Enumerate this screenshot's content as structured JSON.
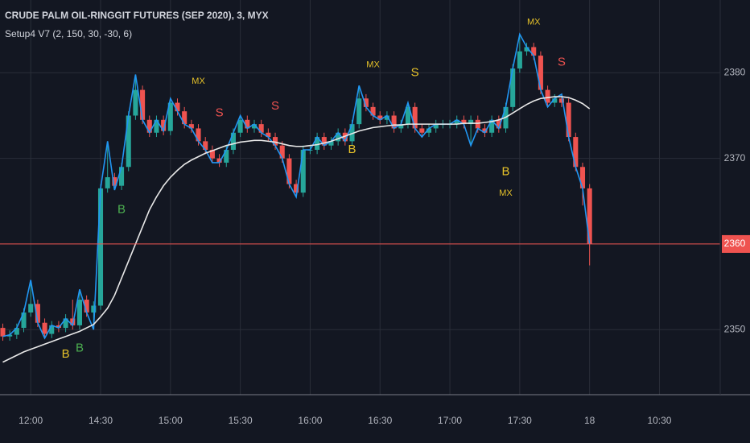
{
  "chart_data": {
    "type": "candlestick",
    "title": "CRUDE PALM OIL-RINGGIT FUTURES (SEP 2020), 3, MYX",
    "subtitle": "Setup4 V7 (2, 150, 30, -30, 6)",
    "up_color": "#26a69a",
    "down_color": "#ef5350",
    "grid": true,
    "ylim": [
      2342.4,
      2388.5
    ],
    "yticks": [
      2350,
      2360,
      2370,
      2380
    ],
    "xlim": [
      -0.4,
      102.7
    ],
    "xticks": [
      {
        "value": 4,
        "label": "12:00"
      },
      {
        "value": 14,
        "label": "14:30"
      },
      {
        "value": 24,
        "label": "15:00"
      },
      {
        "value": 34,
        "label": "15:30"
      },
      {
        "value": 44,
        "label": "16:00"
      },
      {
        "value": 54,
        "label": "16:30"
      },
      {
        "value": 64,
        "label": "17:00"
      },
      {
        "value": 74,
        "label": "17:30"
      },
      {
        "value": 84,
        "label": "18"
      },
      {
        "value": 94,
        "label": "10:30"
      }
    ],
    "open": [
      2350.2,
      2349.2,
      2349.4,
      2350.2,
      2352.0,
      2353.0,
      2350.8,
      2349.5,
      2350.5,
      2350.2,
      2351.3,
      2350.5,
      2353.5,
      2352.0,
      2352.8,
      2366.5,
      2367.8,
      2366.8,
      2369.0,
      2375.0,
      2378.0,
      2374.5,
      2373.0,
      2374.5,
      2373.2,
      2376.5,
      2375.5,
      2374.0,
      2373.5,
      2372.0,
      2371.0,
      2370.0,
      2369.5,
      2371.0,
      2373.0,
      2374.5,
      2373.5,
      2374.0,
      2373.0,
      2372.5,
      2371.5,
      2370.0,
      2367.0,
      2366.0,
      2371.0,
      2371.0,
      2372.5,
      2371.5,
      2372.0,
      2373.0,
      2372.0,
      2374.0,
      2377.0,
      2376.0,
      2375.0,
      2374.5,
      2375.0,
      2373.5,
      2374.0,
      2376.0,
      2373.5,
      2373.0,
      2373.5,
      2374.0,
      2374.0,
      2374.0,
      2374.5,
      2374.0,
      2374.5,
      2373.5,
      2373.0,
      2374.5,
      2373.5,
      2376.0,
      2380.5,
      2382.5,
      2383.0,
      2382.0,
      2378.0,
      2376.5,
      2377.0,
      2376.5,
      2372.5,
      2369.0,
      2366.5
    ],
    "high": [
      2350.7,
      2349.9,
      2350.7,
      2352.5,
      2355.8,
      2353.5,
      2351.3,
      2351.0,
      2351.0,
      2351.8,
      2353.5,
      2354.7,
      2354.0,
      2353.3,
      2367.0,
      2372.0,
      2368.3,
      2369.5,
      2375.5,
      2379.8,
      2378.5,
      2375.0,
      2375.0,
      2375.0,
      2377.0,
      2377.0,
      2376.0,
      2374.5,
      2374.0,
      2372.5,
      2371.5,
      2370.5,
      2371.5,
      2373.5,
      2375.0,
      2375.0,
      2374.5,
      2374.5,
      2373.5,
      2373.0,
      2372.0,
      2370.5,
      2367.5,
      2371.5,
      2371.5,
      2373.0,
      2373.0,
      2372.5,
      2373.5,
      2373.5,
      2374.5,
      2378.5,
      2377.5,
      2376.5,
      2375.5,
      2375.5,
      2375.5,
      2374.5,
      2376.5,
      2376.5,
      2374.0,
      2374.0,
      2374.5,
      2374.5,
      2374.5,
      2375.0,
      2375.0,
      2375.0,
      2375.0,
      2374.0,
      2375.0,
      2375.0,
      2376.5,
      2381.0,
      2384.5,
      2383.5,
      2383.5,
      2382.5,
      2378.5,
      2377.5,
      2377.5,
      2377.0,
      2373.0,
      2369.5,
      2367.0
    ],
    "low": [
      2348.7,
      2348.7,
      2348.9,
      2349.7,
      2351.5,
      2350.3,
      2349.0,
      2349.0,
      2349.7,
      2349.7,
      2350.0,
      2350.0,
      2351.5,
      2350.0,
      2352.3,
      2366.0,
      2366.3,
      2366.3,
      2368.5,
      2374.5,
      2374.0,
      2372.5,
      2372.5,
      2372.7,
      2372.7,
      2375.0,
      2373.5,
      2373.0,
      2371.5,
      2370.5,
      2369.5,
      2369.0,
      2369.0,
      2370.5,
      2372.5,
      2373.0,
      2373.0,
      2372.5,
      2372.0,
      2371.0,
      2369.5,
      2366.5,
      2365.5,
      2365.5,
      2370.5,
      2370.5,
      2371.0,
      2371.0,
      2371.5,
      2371.5,
      2371.5,
      2373.5,
      2375.5,
      2374.5,
      2374.0,
      2374.0,
      2373.0,
      2373.0,
      2373.5,
      2373.0,
      2372.5,
      2372.5,
      2373.0,
      2373.5,
      2373.5,
      2373.5,
      2373.5,
      2371.5,
      2373.0,
      2372.5,
      2372.5,
      2373.0,
      2373.0,
      2375.5,
      2380.0,
      2382.0,
      2381.5,
      2377.5,
      2376.0,
      2376.0,
      2376.0,
      2372.0,
      2368.5,
      2364.5,
      2357.5
    ],
    "close": [
      2349.2,
      2349.4,
      2350.2,
      2352.0,
      2353.0,
      2350.8,
      2349.5,
      2350.5,
      2350.2,
      2351.3,
      2350.5,
      2353.5,
      2352.0,
      2352.8,
      2366.5,
      2367.8,
      2366.8,
      2369.0,
      2375.0,
      2378.0,
      2374.5,
      2373.0,
      2374.5,
      2373.2,
      2376.5,
      2375.5,
      2374.0,
      2373.5,
      2372.0,
      2371.0,
      2370.0,
      2369.5,
      2371.0,
      2373.0,
      2374.5,
      2373.5,
      2374.0,
      2373.0,
      2372.5,
      2371.5,
      2370.0,
      2367.0,
      2366.0,
      2371.0,
      2371.0,
      2372.5,
      2371.5,
      2372.0,
      2373.0,
      2372.0,
      2374.0,
      2377.0,
      2376.0,
      2375.0,
      2374.5,
      2375.0,
      2373.5,
      2374.0,
      2376.0,
      2373.5,
      2373.0,
      2373.5,
      2374.0,
      2374.0,
      2374.0,
      2374.5,
      2374.0,
      2374.5,
      2373.5,
      2373.0,
      2374.5,
      2373.5,
      2376.0,
      2380.5,
      2382.5,
      2383.0,
      2382.0,
      2378.0,
      2376.5,
      2377.0,
      2376.5,
      2372.5,
      2369.0,
      2366.5,
      2360.0
    ],
    "lines": [
      {
        "color": "#2196f3",
        "values": [
          2349.2,
          2349.4,
          2350.2,
          2352.0,
          2355.8,
          2350.8,
          2349.0,
          2350.5,
          2350.2,
          2351.3,
          2350.5,
          2354.7,
          2352.0,
          2350.0,
          2366.5,
          2372.0,
          2366.3,
          2369.0,
          2375.0,
          2379.8,
          2374.5,
          2373.0,
          2374.5,
          2373.2,
          2377.0,
          2375.5,
          2374.0,
          2373.5,
          2372.0,
          2371.0,
          2369.5,
          2369.5,
          2371.0,
          2373.0,
          2375.0,
          2373.5,
          2374.0,
          2373.0,
          2372.5,
          2371.5,
          2370.0,
          2367.0,
          2365.5,
          2371.0,
          2371.0,
          2372.5,
          2371.5,
          2372.0,
          2373.0,
          2372.0,
          2374.0,
          2378.5,
          2376.0,
          2375.0,
          2374.5,
          2375.0,
          2373.5,
          2374.0,
          2376.5,
          2373.5,
          2372.5,
          2373.5,
          2374.0,
          2374.0,
          2374.0,
          2374.5,
          2374.0,
          2371.5,
          2373.5,
          2373.0,
          2374.5,
          2373.5,
          2376.0,
          2380.5,
          2384.5,
          2383.0,
          2382.0,
          2378.0,
          2376.0,
          2377.0,
          2377.5,
          2372.5,
          2369.0,
          2366.5,
          2360.0
        ]
      },
      {
        "color": "#e8e8e8",
        "values": [
          2346.2,
          2346.6,
          2347.0,
          2347.4,
          2347.7,
          2348.0,
          2348.3,
          2348.6,
          2348.9,
          2349.2,
          2349.5,
          2349.8,
          2350.2,
          2350.6,
          2351.5,
          2352.5,
          2354.0,
          2356.0,
          2358.0,
          2360.0,
          2362.0,
          2364.0,
          2365.5,
          2366.8,
          2367.8,
          2368.6,
          2369.3,
          2369.8,
          2370.2,
          2370.6,
          2370.9,
          2371.2,
          2371.5,
          2371.7,
          2371.9,
          2372.0,
          2372.1,
          2372.1,
          2372.0,
          2371.9,
          2371.7,
          2371.5,
          2371.4,
          2371.4,
          2371.5,
          2371.6,
          2371.8,
          2372.0,
          2372.3,
          2372.6,
          2372.9,
          2373.2,
          2373.4,
          2373.6,
          2373.7,
          2373.8,
          2373.9,
          2373.9,
          2374.0,
          2374.0,
          2374.0,
          2374.0,
          2374.0,
          2374.0,
          2374.0,
          2374.0,
          2374.1,
          2374.1,
          2374.1,
          2374.2,
          2374.3,
          2374.5,
          2374.8,
          2375.3,
          2375.8,
          2376.3,
          2376.7,
          2377.0,
          2377.1,
          2377.2,
          2377.2,
          2377.1,
          2376.8,
          2376.4,
          2375.8
        ]
      }
    ],
    "annotations": [
      {
        "text": "MX",
        "x": 28,
        "y": 2379.0,
        "color": "#e6c229"
      },
      {
        "text": "S",
        "x": 31,
        "y": 2375.3,
        "color": "#ef5350"
      },
      {
        "text": "S",
        "x": 39,
        "y": 2376.1,
        "color": "#ef5350"
      },
      {
        "text": "MX",
        "x": 53,
        "y": 2380.9,
        "color": "#e6c229"
      },
      {
        "text": "S",
        "x": 59,
        "y": 2380.0,
        "color": "#e6c229"
      },
      {
        "text": "B",
        "x": 50,
        "y": 2371.0,
        "color": "#e6c229"
      },
      {
        "text": "B",
        "x": 17,
        "y": 2364.0,
        "color": "#4caf50"
      },
      {
        "text": "B",
        "x": 11,
        "y": 2347.8,
        "color": "#4caf50"
      },
      {
        "text": "B",
        "x": 9,
        "y": 2347.1,
        "color": "#e6c229"
      },
      {
        "text": "B",
        "x": 72,
        "y": 2368.4,
        "color": "#e6c229"
      },
      {
        "text": "MX",
        "x": 72,
        "y": 2365.9,
        "color": "#e6c229"
      },
      {
        "text": "MX",
        "x": 76,
        "y": 2385.9,
        "color": "#e6c229"
      },
      {
        "text": "S",
        "x": 80,
        "y": 2381.2,
        "color": "#ef5350"
      }
    ]
  }
}
